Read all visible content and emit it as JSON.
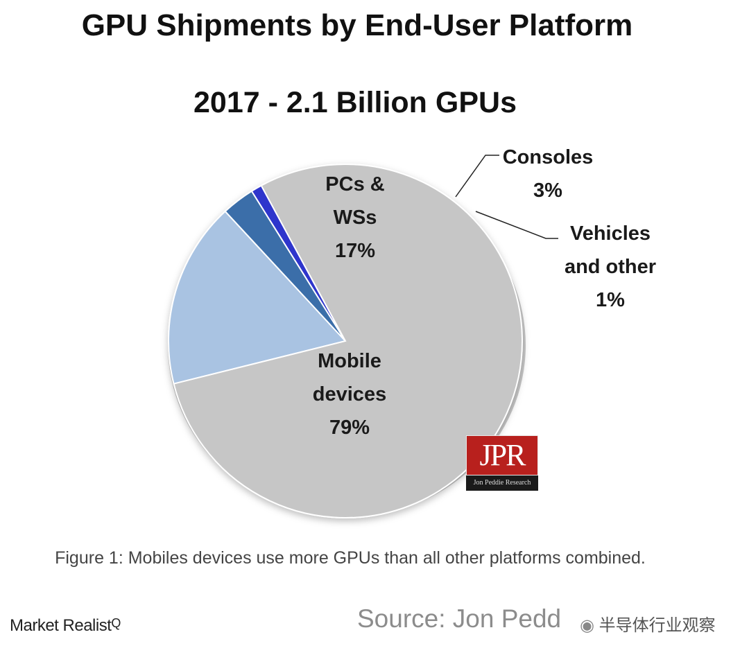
{
  "chart_data": {
    "type": "pie",
    "title": "GPU Shipments by End-User Platform",
    "subtitle": "2017 - 2.1 Billion GPUs",
    "slices": [
      {
        "label_lines": [
          "Mobile",
          "devices"
        ],
        "value": 79,
        "value_label": "79%",
        "color": "#c6c6c6"
      },
      {
        "label_lines": [
          "PCs &",
          "WSs"
        ],
        "value": 17,
        "value_label": "17%",
        "color": "#a9c3e2"
      },
      {
        "label_lines": [
          "Consoles"
        ],
        "value": 3,
        "value_label": "3%",
        "color": "#3b6ea9"
      },
      {
        "label_lines": [
          "Vehicles",
          "and other"
        ],
        "value": 1,
        "value_label": "1%",
        "color": "#2f34cc"
      }
    ]
  },
  "caption": "Figure 1: Mobiles devices use more GPUs than all other platforms combined.",
  "branding": {
    "market_realist": "Market Realist",
    "market_realist_mark": "Q",
    "source": "Source: Jon Pedd",
    "watermark_icon": "wechat-icon",
    "watermark": "半导体行业观察",
    "logo_text": "JPR",
    "logo_subtext": "Jon Peddie Research"
  }
}
